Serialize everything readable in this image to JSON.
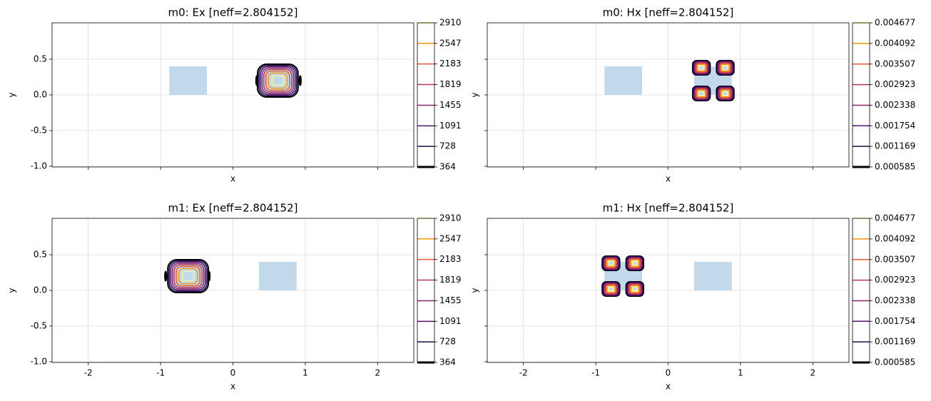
{
  "chart_data": [
    {
      "type": "contour",
      "title": "m0: Ex [neff=2.804152]",
      "xlabel": "x",
      "ylabel": "y",
      "xlim": [
        -2.5,
        2.5
      ],
      "ylim": [
        -1.01,
        1.01
      ],
      "xticks": [
        -2,
        -1,
        0,
        1,
        2
      ],
      "yticks": [
        {
          "value": -1,
          "label": "-1.0"
        },
        -0.5,
        {
          "value": 0,
          "label": "0.0"
        },
        0.5
      ],
      "xtick_labels": false,
      "ytick_labels": true,
      "grid": true,
      "rects": [
        {
          "x": [
            -0.88,
            -0.36
          ],
          "y": [
            0,
            0.4
          ]
        },
        {
          "x": [
            0.36,
            0.88
          ],
          "y": [
            0,
            0.4
          ]
        }
      ],
      "rect_color": "#c2d9ec",
      "levels": [
        364,
        728,
        1091,
        1455,
        1819,
        2183,
        2547,
        2910
      ],
      "colors": [
        "#000004",
        "#1f0c48",
        "#550f6d",
        "#88226a",
        "#ba3655",
        "#e35933",
        "#f9950a",
        "#f4f88e"
      ],
      "lobes": [
        [
          0.62,
          0.2
        ]
      ],
      "lobe_size": [
        0.28,
        0.23
      ],
      "side_lobes": [
        [
          0.33,
          0.2
        ],
        [
          0.93,
          0.2
        ]
      ]
    },
    {
      "type": "contour",
      "title": "m0: Hx [neff=2.804152]",
      "xlabel": "x",
      "ylabel": "y",
      "xlim": [
        -2.5,
        2.5
      ],
      "ylim": [
        -1.01,
        1.01
      ],
      "xticks": [
        -2,
        -1,
        0,
        1,
        2
      ],
      "yticks": [
        {
          "value": -1,
          "label": "-1.0"
        },
        -0.5,
        {
          "value": 0,
          "label": "0.0"
        },
        0.5
      ],
      "xtick_labels": false,
      "ytick_labels": false,
      "grid": true,
      "rects": [
        {
          "x": [
            -0.88,
            -0.36
          ],
          "y": [
            0,
            0.4
          ]
        },
        {
          "x": [
            0.36,
            0.88
          ],
          "y": [
            0,
            0.4
          ]
        }
      ],
      "rect_color": "#c2d9ec",
      "levels": [
        0.000585,
        0.001169,
        0.001754,
        0.002338,
        0.002923,
        0.003507,
        0.004092,
        0.004677
      ],
      "colors": [
        "#000004",
        "#1f0c48",
        "#550f6d",
        "#88226a",
        "#ba3655",
        "#e35933",
        "#f9950a",
        "#f4f88e"
      ],
      "lobes": [
        [
          0.46,
          0.38
        ],
        [
          0.79,
          0.38
        ],
        [
          0.46,
          0.02
        ],
        [
          0.79,
          0.02
        ]
      ],
      "lobe_size": [
        0.12,
        0.1
      ],
      "side_lobes": []
    },
    {
      "type": "contour",
      "title": "m1: Ex [neff=2.804152]",
      "xlabel": "x",
      "ylabel": "y",
      "xlim": [
        -2.5,
        2.5
      ],
      "ylim": [
        -1.01,
        1.01
      ],
      "xticks": [
        -2,
        -1,
        0,
        1,
        2
      ],
      "yticks": [
        {
          "value": -1,
          "label": "-1.0"
        },
        -0.5,
        {
          "value": 0,
          "label": "0.0"
        },
        0.5
      ],
      "xtick_labels": true,
      "ytick_labels": true,
      "grid": true,
      "rects": [
        {
          "x": [
            -0.88,
            -0.36
          ],
          "y": [
            0,
            0.4
          ]
        },
        {
          "x": [
            0.36,
            0.88
          ],
          "y": [
            0,
            0.4
          ]
        }
      ],
      "rect_color": "#c2d9ec",
      "levels": [
        364,
        728,
        1091,
        1455,
        1819,
        2183,
        2547,
        2910
      ],
      "colors": [
        "#000004",
        "#1f0c48",
        "#550f6d",
        "#88226a",
        "#ba3655",
        "#e35933",
        "#f9950a",
        "#f4f88e"
      ],
      "lobes": [
        [
          -0.62,
          0.2
        ]
      ],
      "lobe_size": [
        0.28,
        0.23
      ],
      "side_lobes": [
        [
          -0.93,
          0.2
        ],
        [
          -0.33,
          0.2
        ]
      ]
    },
    {
      "type": "contour",
      "title": "m1: Hx [neff=2.804152]",
      "xlabel": "x",
      "ylabel": "y",
      "xlim": [
        -2.5,
        2.5
      ],
      "ylim": [
        -1.01,
        1.01
      ],
      "xticks": [
        -2,
        -1,
        0,
        1,
        2
      ],
      "yticks": [
        {
          "value": -1,
          "label": "-1.0"
        },
        -0.5,
        {
          "value": 0,
          "label": "0.0"
        },
        0.5
      ],
      "xtick_labels": true,
      "ytick_labels": false,
      "grid": true,
      "rects": [
        {
          "x": [
            -0.88,
            -0.36
          ],
          "y": [
            0,
            0.4
          ]
        },
        {
          "x": [
            0.36,
            0.88
          ],
          "y": [
            0,
            0.4
          ]
        }
      ],
      "rect_color": "#c2d9ec",
      "levels": [
        0.000585,
        0.001169,
        0.001754,
        0.002338,
        0.002923,
        0.003507,
        0.004092,
        0.004677
      ],
      "colors": [
        "#000004",
        "#1f0c48",
        "#550f6d",
        "#88226a",
        "#ba3655",
        "#e35933",
        "#f9950a",
        "#f4f88e"
      ],
      "lobes": [
        [
          -0.79,
          0.38
        ],
        [
          -0.46,
          0.38
        ],
        [
          -0.79,
          0.02
        ],
        [
          -0.46,
          0.02
        ]
      ],
      "lobe_size": [
        0.12,
        0.1
      ],
      "side_lobes": []
    }
  ]
}
